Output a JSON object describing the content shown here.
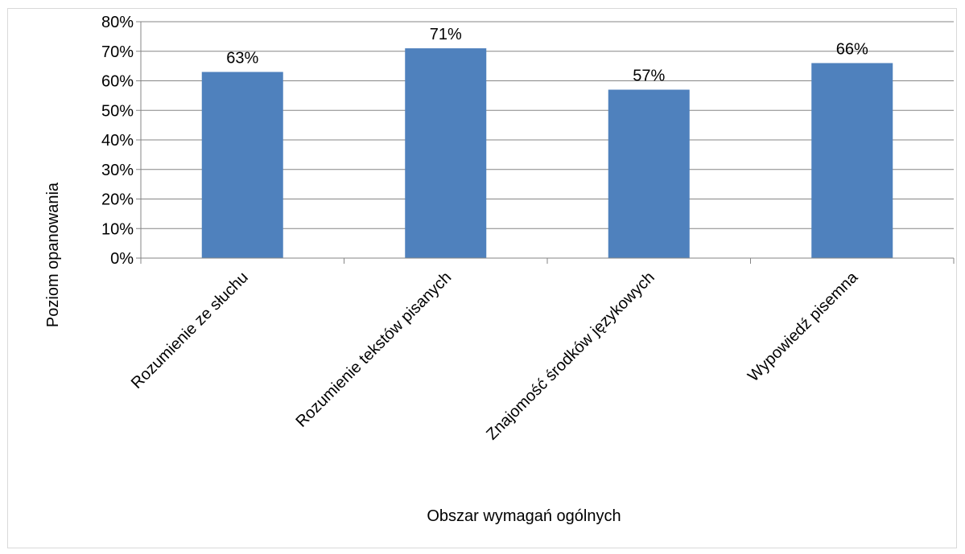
{
  "chart_data": {
    "type": "bar",
    "categories": [
      "Rozumienie ze słuchu",
      "Rozumienie tekstów pisanych",
      "Znajomość środków językowych",
      "Wypowiedź pisemna"
    ],
    "values": [
      63,
      71,
      57,
      66
    ],
    "data_labels": [
      "63%",
      "71%",
      "57%",
      "66%"
    ],
    "y_ticks": [
      {
        "value": 0,
        "label": "0%"
      },
      {
        "value": 10,
        "label": "10%"
      },
      {
        "value": 20,
        "label": "20%"
      },
      {
        "value": 30,
        "label": "30%"
      },
      {
        "value": 40,
        "label": "40%"
      },
      {
        "value": 50,
        "label": "50%"
      },
      {
        "value": 60,
        "label": "60%"
      },
      {
        "value": 70,
        "label": "70%"
      },
      {
        "value": 80,
        "label": "80%"
      }
    ],
    "ylim": [
      0,
      80
    ],
    "xlabel": "Obszar wymagań ogólnych",
    "ylabel": "Poziom opanowania",
    "grid": true,
    "legend": "none",
    "bar_color": "#4f81bd",
    "grid_color": "#868686",
    "axis_color": "#868686"
  }
}
